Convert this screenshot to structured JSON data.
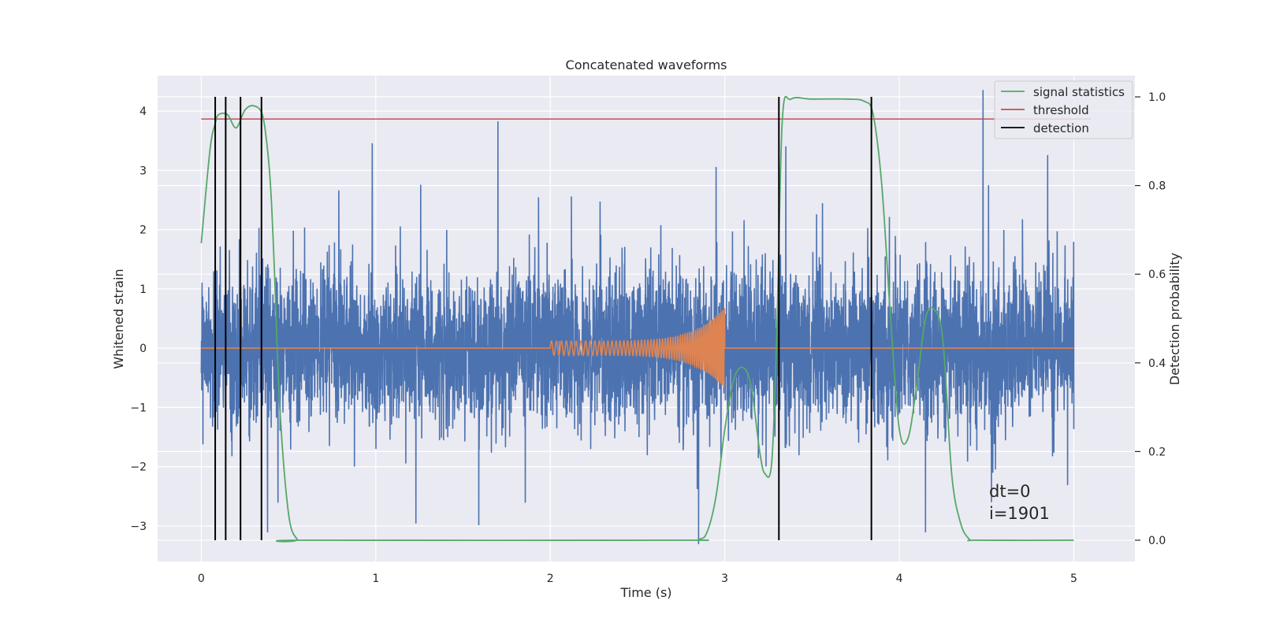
{
  "chart_data": {
    "type": "line",
    "title": "Concatenated waveforms",
    "xlabel": "Time (s)",
    "ylabel": "Whitened strain",
    "y2label": "Detection probability",
    "xlim": [
      -0.25,
      5.35
    ],
    "ylim": [
      -3.6,
      4.6
    ],
    "y2lim": [
      -0.048,
      1.048
    ],
    "grid": true,
    "xticks": [
      0,
      1,
      2,
      3,
      4,
      5
    ],
    "yticks": [
      -3,
      -2,
      -1,
      0,
      1,
      2,
      3,
      4
    ],
    "y2ticks": [
      0.0,
      0.2,
      0.4,
      0.6,
      0.8,
      1.0
    ],
    "tick_labels": {
      "x": [
        "0",
        "1",
        "2",
        "3",
        "4",
        "5"
      ],
      "y": [
        "−3",
        "−2",
        "−1",
        "0",
        "1",
        "2",
        "3",
        "4"
      ],
      "y2": [
        "0.0",
        "0.2",
        "0.4",
        "0.6",
        "0.8",
        "1.0"
      ]
    },
    "legend_position": "top-right",
    "colors": {
      "strain": "#4c72b0",
      "waveform": "#dd8452",
      "signal_statistics": "#55a868",
      "threshold": "#c44e52",
      "detection": "#000000",
      "background": "#eaeaf2",
      "grid": "#ffffff"
    },
    "strain": {
      "t_range": [
        0,
        5
      ],
      "envelope": 1.1,
      "notable_spikes": [
        {
          "x": 0.98,
          "y": 3.45
        },
        {
          "x": 1.7,
          "y": 3.82
        },
        {
          "x": 2.95,
          "y": 3.05
        },
        {
          "x": 3.35,
          "y": 3.4
        },
        {
          "x": 4.48,
          "y": 4.35
        },
        {
          "x": 4.85,
          "y": 3.25
        },
        {
          "x": 0.38,
          "y": -3.1
        },
        {
          "x": 1.23,
          "y": -2.95
        },
        {
          "x": 1.59,
          "y": -2.98
        },
        {
          "x": 2.85,
          "y": -3.3
        },
        {
          "x": 4.15,
          "y": -3.1
        }
      ]
    },
    "waveform": {
      "t_start": 2.0,
      "t_end": 3.0,
      "start_amplitude": 0.12,
      "end_amplitude": 0.68,
      "start_frequency_hz": 35,
      "end_frequency_hz": 110
    },
    "threshold": {
      "value": 0.95,
      "x_range": [
        0,
        5.1
      ]
    },
    "signal_statistics": {
      "x": [
        0,
        0.05,
        0.08,
        0.1,
        0.15,
        0.2,
        0.25,
        0.3,
        0.35,
        0.38,
        0.4,
        0.42,
        0.45,
        0.5,
        0.55,
        0.6,
        2.7,
        2.85,
        2.9,
        2.95,
        3.0,
        3.05,
        3.1,
        3.15,
        3.2,
        3.23,
        3.27,
        3.3,
        3.33,
        3.38,
        3.5,
        3.7,
        3.8,
        3.85,
        3.9,
        3.95,
        4.0,
        4.05,
        4.1,
        4.15,
        4.2,
        4.25,
        4.3,
        4.35,
        4.4,
        4.45,
        5.0
      ],
      "y": [
        0.67,
        0.88,
        0.94,
        0.96,
        0.96,
        0.93,
        0.97,
        0.98,
        0.96,
        0.88,
        0.78,
        0.6,
        0.3,
        0.06,
        0.002,
        0.0,
        0.0,
        0.002,
        0.02,
        0.1,
        0.25,
        0.36,
        0.39,
        0.35,
        0.2,
        0.15,
        0.18,
        0.5,
        0.95,
        0.995,
        0.995,
        0.995,
        0.99,
        0.96,
        0.8,
        0.5,
        0.25,
        0.23,
        0.35,
        0.5,
        0.52,
        0.45,
        0.15,
        0.04,
        0.003,
        0.0,
        0.0
      ]
    },
    "detections": [
      0.08,
      0.14,
      0.225,
      0.345,
      3.31,
      3.84
    ],
    "legend": [
      "signal statistics",
      "threshold",
      "detection"
    ],
    "annotations": [
      "dt=0",
      "i=1901"
    ]
  }
}
